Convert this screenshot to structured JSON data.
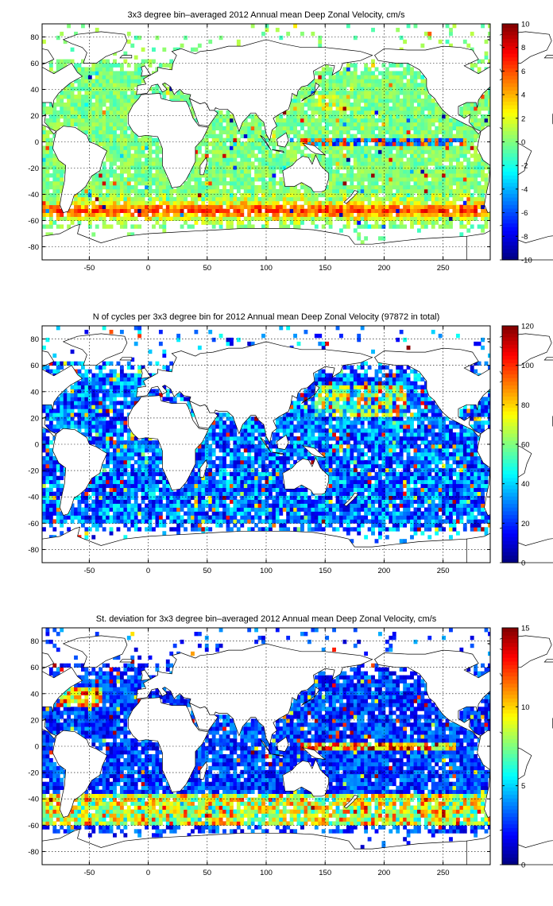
{
  "chart_data": [
    {
      "type": "heatmap",
      "title": "3x3 degree bin–averaged 2012 Annual mean Deep Zonal Velocity, cm/s",
      "xlim": [
        -90,
        290
      ],
      "ylim": [
        -90,
        90
      ],
      "xticks": [
        -50,
        0,
        50,
        100,
        150,
        200,
        250
      ],
      "yticks": [
        -80,
        -60,
        -40,
        -20,
        0,
        20,
        40,
        60,
        80
      ],
      "grid": true,
      "bin_size_deg": 3,
      "colorbar": {
        "range": [
          -10,
          10
        ],
        "ticks": [
          -10,
          -8,
          -6,
          -4,
          -2,
          0,
          2,
          4,
          6,
          8,
          10
        ],
        "colormap": "jet"
      },
      "field": "velocity",
      "seed": 11
    },
    {
      "type": "heatmap",
      "title": "N of cycles per 3x3 degree bin for 2012 Annual mean Deep Zonal Velocity (97872 in total)",
      "xlim": [
        -90,
        290
      ],
      "ylim": [
        -90,
        90
      ],
      "xticks": [
        -50,
        0,
        50,
        100,
        150,
        200,
        250
      ],
      "yticks": [
        -80,
        -60,
        -40,
        -20,
        0,
        20,
        40,
        60,
        80
      ],
      "grid": true,
      "bin_size_deg": 3,
      "colorbar": {
        "range": [
          0,
          120
        ],
        "ticks": [
          0,
          20,
          40,
          60,
          80,
          100,
          120
        ],
        "colormap": "jet"
      },
      "field": "count",
      "seed": 23
    },
    {
      "type": "heatmap",
      "title": "St. deviation for 3x3 degree bin–averaged 2012 Annual mean Deep Zonal Velocity, cm/s",
      "xlim": [
        -90,
        290
      ],
      "ylim": [
        -90,
        90
      ],
      "xticks": [
        -50,
        0,
        50,
        100,
        150,
        200,
        250
      ],
      "yticks": [
        -80,
        -60,
        -40,
        -20,
        0,
        20,
        40,
        60,
        80
      ],
      "grid": true,
      "bin_size_deg": 3,
      "colorbar": {
        "range": [
          0,
          15
        ],
        "ticks": [
          0,
          5,
          10,
          15
        ],
        "colormap": "jet"
      },
      "field": "stdev",
      "seed": 37
    }
  ]
}
